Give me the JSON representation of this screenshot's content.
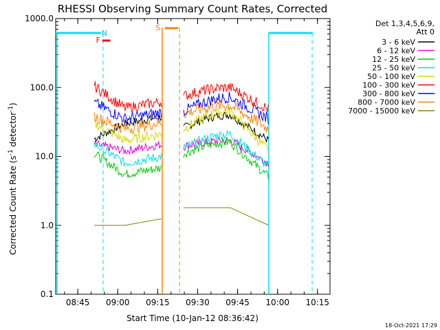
{
  "chart_data": {
    "type": "line",
    "title": "RHESSI Observing Summary Count Rates, Corrected",
    "xlabel": "Start Time (10-Jan-12 08:36:42)",
    "ylabel": "Corrected Count Rate (s⁻¹ detector⁻¹)",
    "ylabel_main": "Corrected Count Rate (s",
    "ylabel_sup1": "-1",
    "ylabel_mid": " detector",
    "ylabel_sup2": "-1",
    "ylabel_end": ")",
    "yscale": "log",
    "x_minutes_range": [
      0,
      103
    ],
    "ylim": [
      0.1,
      1000
    ],
    "xtick_minutes": [
      8.3,
      23.3,
      38.3,
      53.3,
      68.3,
      83.3,
      98.3
    ],
    "xtick_labels": [
      "08:45",
      "09:00",
      "09:15",
      "09:30",
      "09:45",
      "10:00",
      "10:15"
    ],
    "ytick_values": [
      0.1,
      1,
      10,
      100,
      1000
    ],
    "ytick_labels": [
      "0.1",
      "1.0",
      "10.0",
      "100.0",
      "1000.0"
    ],
    "legend_header": [
      "Det 1,3,4,5,6,9,",
      "Att 0"
    ],
    "series": [
      {
        "name": "3 - 6 keV",
        "color": "#000000",
        "levels": [
          18,
          30,
          40,
          26,
          17
        ]
      },
      {
        "name": "6 - 12 keV",
        "color": "#e000e0",
        "levels": [
          15,
          12,
          17,
          14,
          8
        ]
      },
      {
        "name": "12 - 25 keV",
        "color": "#00cc00",
        "levels": [
          11,
          5.5,
          16,
          11,
          5
        ]
      },
      {
        "name": "25 - 50 keV",
        "color": "#00e0e0",
        "levels": [
          15,
          8,
          21,
          13,
          7
        ]
      },
      {
        "name": "50 - 100 keV",
        "color": "#d8d800",
        "levels": [
          30,
          17,
          45,
          25,
          12
        ]
      },
      {
        "name": "100 - 300 keV",
        "color": "#ff0000",
        "levels": [
          105,
          50,
          100,
          75,
          48
        ]
      },
      {
        "name": "300 - 800 keV",
        "color": "#0000ff",
        "levels": [
          60,
          35,
          72,
          45,
          35
        ]
      },
      {
        "name": "800 - 7000 keV",
        "color": "#ff8000",
        "levels": [
          38,
          25,
          55,
          42,
          25
        ]
      },
      {
        "name": "7000 - 15000 keV",
        "color": "#808000",
        "levels": [
          1.0,
          1.0,
          1.8,
          1.8,
          1.0
        ]
      }
    ],
    "observing_periods": {
      "data_intervals_minutes": [
        [
          14.5,
          40
        ],
        [
          48,
          80
        ]
      ],
      "night_bars_minutes": [
        [
          0,
          17
        ],
        [
          80,
          96.5
        ]
      ],
      "night_label": "N",
      "flare_label": "F",
      "flare_bar_minutes": [
        17.5,
        20.5
      ],
      "saa_label": "S",
      "saa_bar_minutes": [
        41,
        46
      ],
      "saa_lines_minutes": [
        40,
        46.5
      ],
      "night_lines_minutes": [
        17.8,
        96.3
      ],
      "cyan_lines_minutes": [
        0.5,
        80
      ]
    },
    "timestamp": "18-Oct-2021 17:29"
  }
}
